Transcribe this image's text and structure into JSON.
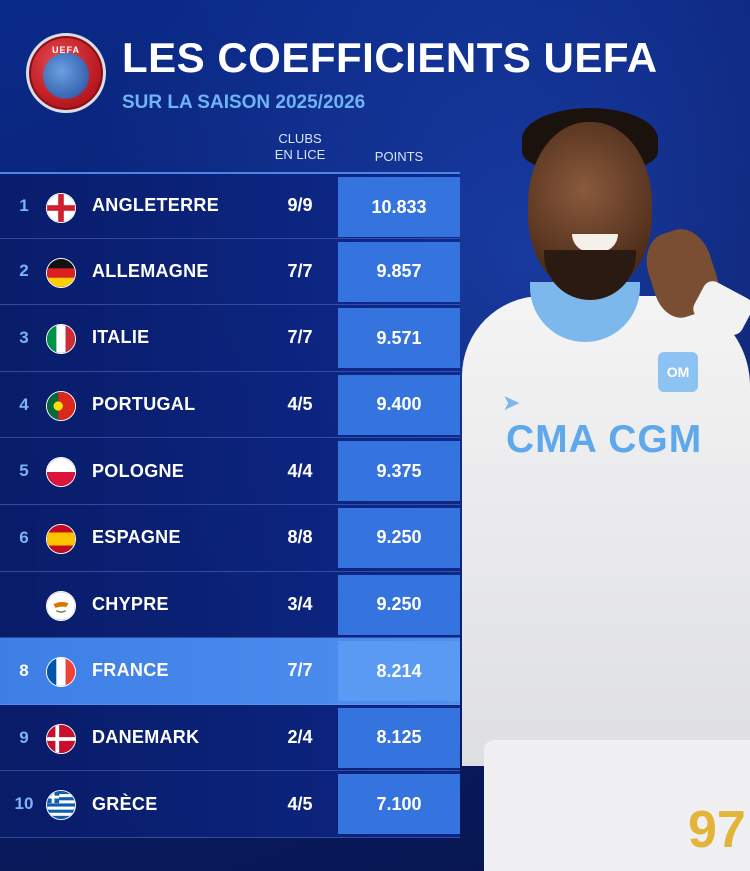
{
  "header": {
    "logo_text": "UEFA",
    "title": "LES COEFFICIENTS UEFA",
    "subtitle": "SUR LA SAISON 2025/2026"
  },
  "columns": {
    "clubs_line1": "CLUBS",
    "clubs_line2": "EN LICE",
    "points": "POINTS"
  },
  "rows": [
    {
      "rank": "1",
      "country": "ANGLETERRE",
      "clubs": "9/9",
      "points": "10.833",
      "flag": "england"
    },
    {
      "rank": "2",
      "country": "ALLEMAGNE",
      "clubs": "7/7",
      "points": "9.857",
      "flag": "germany"
    },
    {
      "rank": "3",
      "country": "ITALIE",
      "clubs": "7/7",
      "points": "9.571",
      "flag": "italy"
    },
    {
      "rank": "4",
      "country": "PORTUGAL",
      "clubs": "4/5",
      "points": "9.400",
      "flag": "portugal"
    },
    {
      "rank": "5",
      "country": "POLOGNE",
      "clubs": "4/4",
      "points": "9.375",
      "flag": "poland"
    },
    {
      "rank": "6",
      "country": "ESPAGNE",
      "clubs": "8/8",
      "points": "9.250",
      "flag": "spain"
    },
    {
      "rank": "",
      "country": "CHYPRE",
      "clubs": "3/4",
      "points": "9.250",
      "flag": "cyprus"
    },
    {
      "rank": "8",
      "country": "FRANCE",
      "clubs": "7/7",
      "points": "8.214",
      "flag": "france"
    },
    {
      "rank": "9",
      "country": "DANEMARK",
      "clubs": "2/4",
      "points": "8.125",
      "flag": "denmark"
    },
    {
      "rank": "10",
      "country": "GRÈCE",
      "clubs": "4/5",
      "points": "7.100",
      "flag": "greece"
    }
  ],
  "highlight_country": "FRANCE",
  "player": {
    "sponsor": "CMA CGM",
    "number": "97"
  },
  "colors": {
    "background": "#0b1f6b",
    "accent": "#3573df",
    "highlight": "#4f8ff0",
    "subtitle": "#6fb4f5"
  }
}
